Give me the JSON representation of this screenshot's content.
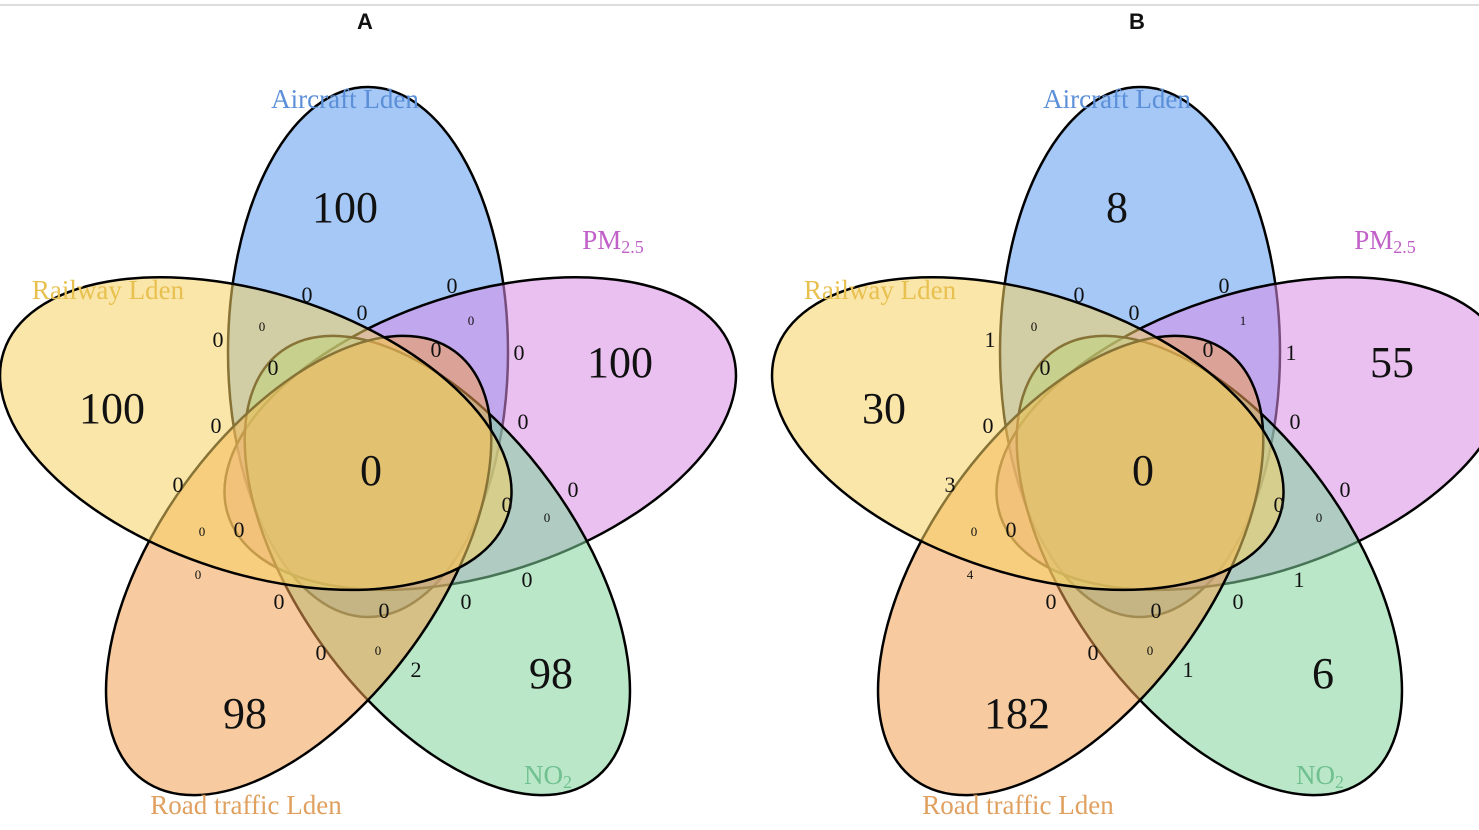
{
  "panels": [
    {
      "title": "A",
      "sets": [
        {
          "text": "Aircraft Lden"
        },
        {
          "text": "PM",
          "sub": "2.5"
        },
        {
          "text": "NO",
          "sub": "2"
        },
        {
          "text": "Road traffic Lden"
        },
        {
          "text": "Railway Lden"
        }
      ],
      "regions": [
        100,
        100,
        100,
        98,
        98,
        0,
        0,
        0,
        0,
        0,
        0,
        0,
        0,
        0,
        0,
        0,
        0,
        0,
        0,
        0,
        0,
        0,
        0,
        0,
        0,
        0,
        0,
        0,
        0,
        0,
        2
      ]
    },
    {
      "title": "B",
      "sets": [
        {
          "text": "Aircraft Lden"
        },
        {
          "text": "PM",
          "sub": "2.5"
        },
        {
          "text": "NO",
          "sub": "2"
        },
        {
          "text": "Road traffic Lden"
        },
        {
          "text": "Railway Lden"
        }
      ],
      "regions": [
        8,
        55,
        30,
        6,
        182,
        0,
        0,
        0,
        0,
        1,
        0,
        0,
        0,
        1,
        1,
        0,
        0,
        3,
        0,
        0,
        0,
        0,
        0,
        4,
        0,
        0,
        0,
        1,
        0,
        0,
        1
      ]
    }
  ]
}
